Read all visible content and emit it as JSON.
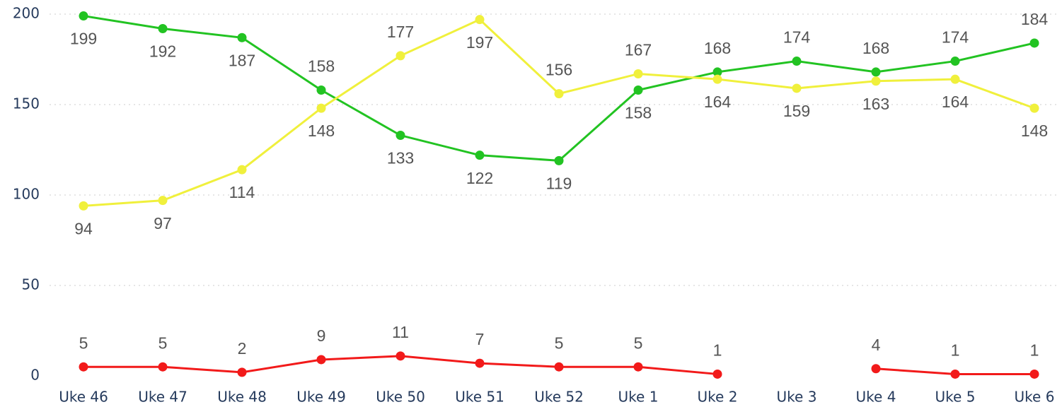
{
  "chart_data": {
    "type": "line",
    "categories": [
      "Uke 46",
      "Uke 47",
      "Uke 48",
      "Uke 49",
      "Uke 50",
      "Uke 51",
      "Uke 52",
      "Uke 1",
      "Uke 2",
      "Uke 3",
      "Uke 4",
      "Uke 5",
      "Uke 6"
    ],
    "series": [
      {
        "color": "#22c322",
        "values": [
          199,
          192,
          187,
          158,
          133,
          122,
          119,
          158,
          168,
          174,
          168,
          174,
          184
        ]
      },
      {
        "color": "#f0f03c",
        "values": [
          94,
          97,
          114,
          148,
          177,
          197,
          156,
          167,
          164,
          159,
          163,
          164,
          148
        ]
      },
      {
        "color": "#f21a1a",
        "values": [
          5,
          5,
          2,
          9,
          11,
          7,
          5,
          5,
          1,
          null,
          4,
          1,
          1
        ]
      }
    ],
    "ylim": [
      0,
      200
    ],
    "yticks": [
      0,
      50,
      100,
      150,
      200
    ],
    "grid": true
  }
}
